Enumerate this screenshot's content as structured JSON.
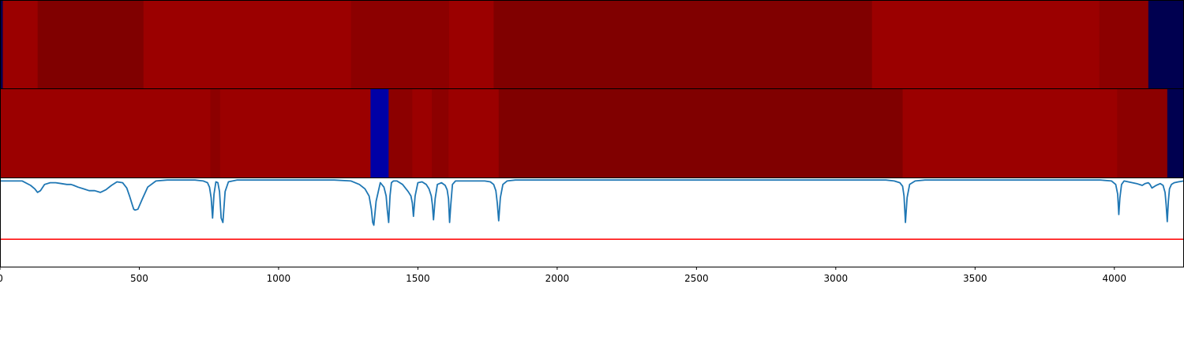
{
  "chart_data": [
    {
      "type": "heatmap",
      "colors": {
        "darkest": "#000050",
        "dark_red": "#800000",
        "mid_red": "#8c0000",
        "red": "#9b0000"
      },
      "segments": [
        {
          "x0": 0,
          "x1": 10,
          "color": "#000050"
        },
        {
          "x0": 10,
          "x1": 135,
          "color": "#9b0000"
        },
        {
          "x0": 135,
          "x1": 515,
          "color": "#800000"
        },
        {
          "x0": 515,
          "x1": 1260,
          "color": "#9b0000"
        },
        {
          "x0": 1260,
          "x1": 1612,
          "color": "#8c0000"
        },
        {
          "x0": 1612,
          "x1": 1772,
          "color": "#9b0000"
        },
        {
          "x0": 1772,
          "x1": 3130,
          "color": "#800000"
        },
        {
          "x0": 3130,
          "x1": 3946,
          "color": "#9b0000"
        },
        {
          "x0": 3946,
          "x1": 4122,
          "color": "#8c0000"
        },
        {
          "x0": 4122,
          "x1": 4250,
          "color": "#000050"
        }
      ]
    },
    {
      "type": "heatmap",
      "colors": {
        "blue": "#0000a6",
        "darkest": "#000050",
        "dark_red": "#800000",
        "mid_red": "#8c0000",
        "red": "#9b0000"
      },
      "segments": [
        {
          "x0": 0,
          "x1": 755,
          "color": "#9b0000"
        },
        {
          "x0": 755,
          "x1": 790,
          "color": "#8c0000"
        },
        {
          "x0": 790,
          "x1": 1330,
          "color": "#9b0000"
        },
        {
          "x0": 1330,
          "x1": 1395,
          "color": "#0000a6"
        },
        {
          "x0": 1395,
          "x1": 1480,
          "color": "#8c0000"
        },
        {
          "x0": 1480,
          "x1": 1550,
          "color": "#9b0000"
        },
        {
          "x0": 1550,
          "x1": 1610,
          "color": "#8c0000"
        },
        {
          "x0": 1610,
          "x1": 1790,
          "color": "#9b0000"
        },
        {
          "x0": 1790,
          "x1": 3240,
          "color": "#800000"
        },
        {
          "x0": 3240,
          "x1": 4010,
          "color": "#9b0000"
        },
        {
          "x0": 4010,
          "x1": 4190,
          "color": "#8c0000"
        },
        {
          "x0": 4190,
          "x1": 4250,
          "color": "#000050"
        }
      ]
    },
    {
      "type": "line",
      "xlim": [
        0,
        4250
      ],
      "ylim": [
        0,
        1
      ],
      "x_ticks": [
        "0",
        "500",
        "1000",
        "1500",
        "2000",
        "2500",
        "3000",
        "3500",
        "4000"
      ],
      "x_tick_values": [
        0,
        500,
        1000,
        1500,
        2000,
        2500,
        3000,
        3500,
        4000
      ],
      "grid": false,
      "series": [
        {
          "color": "#1f77b4",
          "x": [
            0,
            80,
            110,
            125,
            135,
            145,
            160,
            180,
            200,
            220,
            240,
            255,
            265,
            280,
            300,
            320,
            340,
            360,
            380,
            400,
            420,
            440,
            455,
            465,
            475,
            480,
            485,
            495,
            510,
            530,
            560,
            600,
            650,
            700,
            730,
            745,
            752,
            758,
            763,
            768,
            775,
            782,
            788,
            794,
            800,
            808,
            820,
            850,
            900,
            1000,
            1100,
            1200,
            1260,
            1290,
            1310,
            1325,
            1333,
            1338,
            1342,
            1350,
            1365,
            1378,
            1386,
            1390,
            1395,
            1400,
            1405,
            1412,
            1425,
            1445,
            1465,
            1475,
            1480,
            1484,
            1490,
            1500,
            1515,
            1530,
            1540,
            1548,
            1552,
            1556,
            1562,
            1570,
            1585,
            1598,
            1605,
            1610,
            1614,
            1618,
            1624,
            1635,
            1650,
            1680,
            1710,
            1740,
            1760,
            1772,
            1780,
            1785,
            1790,
            1796,
            1805,
            1820,
            1850,
            1900,
            2000,
            2200,
            2500,
            2800,
            3000,
            3100,
            3150,
            3180,
            3210,
            3230,
            3240,
            3245,
            3250,
            3256,
            3265,
            3285,
            3320,
            3400,
            3600,
            3800,
            3950,
            3990,
            4005,
            4012,
            4016,
            4020,
            4026,
            4035,
            4050,
            4080,
            4100,
            4110,
            4122,
            4128,
            4135,
            4150,
            4165,
            4175,
            4182,
            4186,
            4190,
            4194,
            4198,
            4205,
            4215,
            4230,
            4250
          ],
          "y": [
            0.97,
            0.97,
            0.92,
            0.88,
            0.84,
            0.86,
            0.93,
            0.95,
            0.95,
            0.94,
            0.93,
            0.93,
            0.92,
            0.9,
            0.88,
            0.86,
            0.86,
            0.84,
            0.87,
            0.92,
            0.96,
            0.95,
            0.89,
            0.8,
            0.7,
            0.65,
            0.64,
            0.65,
            0.76,
            0.9,
            0.97,
            0.98,
            0.98,
            0.98,
            0.97,
            0.95,
            0.9,
            0.78,
            0.55,
            0.82,
            0.96,
            0.95,
            0.85,
            0.55,
            0.5,
            0.85,
            0.96,
            0.98,
            0.98,
            0.98,
            0.98,
            0.98,
            0.97,
            0.93,
            0.88,
            0.8,
            0.65,
            0.5,
            0.47,
            0.74,
            0.95,
            0.9,
            0.8,
            0.65,
            0.5,
            0.8,
            0.95,
            0.97,
            0.97,
            0.93,
            0.85,
            0.8,
            0.72,
            0.57,
            0.8,
            0.95,
            0.96,
            0.93,
            0.88,
            0.8,
            0.7,
            0.53,
            0.77,
            0.93,
            0.95,
            0.92,
            0.87,
            0.77,
            0.5,
            0.7,
            0.93,
            0.97,
            0.97,
            0.97,
            0.97,
            0.97,
            0.96,
            0.93,
            0.86,
            0.72,
            0.52,
            0.78,
            0.93,
            0.97,
            0.98,
            0.98,
            0.98,
            0.98,
            0.98,
            0.98,
            0.98,
            0.98,
            0.98,
            0.98,
            0.97,
            0.95,
            0.91,
            0.8,
            0.5,
            0.78,
            0.93,
            0.97,
            0.98,
            0.98,
            0.98,
            0.98,
            0.98,
            0.97,
            0.93,
            0.82,
            0.59,
            0.78,
            0.93,
            0.97,
            0.96,
            0.94,
            0.92,
            0.94,
            0.95,
            0.93,
            0.89,
            0.92,
            0.94,
            0.92,
            0.84,
            0.7,
            0.51,
            0.74,
            0.88,
            0.93,
            0.95,
            0.96,
            0.97
          ]
        },
        {
          "color": "#ff0000",
          "x": [
            0,
            4250
          ],
          "y": [
            0.31,
            0.31
          ]
        }
      ]
    }
  ]
}
